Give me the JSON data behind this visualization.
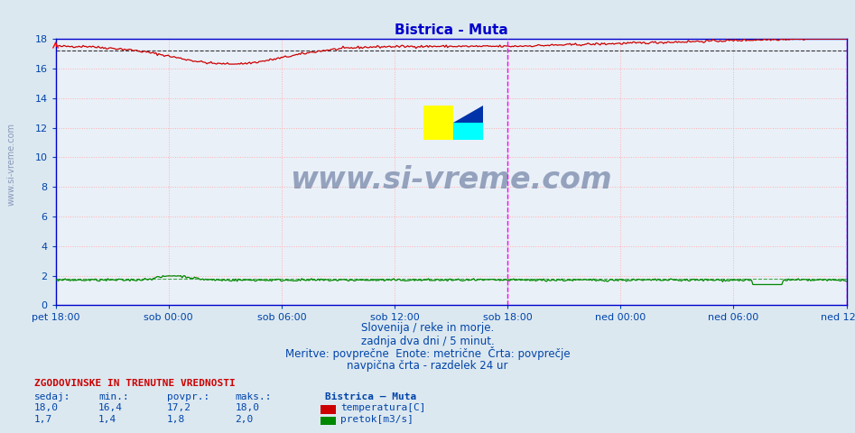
{
  "title": "Bistrica - Muta",
  "title_color": "#0000cc",
  "bg_color": "#dce8f0",
  "plot_bg_color": "#eaf0f8",
  "grid_color": "#ffb0b0",
  "border_color": "#0000cc",
  "ylim": [
    0,
    18
  ],
  "yticks": [
    0,
    2,
    4,
    6,
    8,
    10,
    12,
    14,
    16,
    18
  ],
  "xtick_labels": [
    "pet 18:00",
    "sob 00:00",
    "sob 06:00",
    "sob 12:00",
    "sob 18:00",
    "ned 00:00",
    "ned 06:00",
    "ned 12:00"
  ],
  "n_points": 576,
  "temp_color": "#cc0000",
  "flow_color": "#008800",
  "temp_avg": 17.2,
  "flow_avg": 1.8,
  "watermark": "www.si-vreme.com",
  "watermark_color": "#7788aa",
  "side_watermark_color": "#8899bb",
  "subtitle1": "Slovenija / reke in morje.",
  "subtitle2": "zadnja dva dni / 5 minut.",
  "subtitle3": "Meritve: povprečne  Enote: metrične  Črta: povprečje",
  "subtitle4": "navpična črta - razdelek 24 ur",
  "legend_title": "Bistrica – Muta",
  "legend_label1": "temperatura[C]",
  "legend_label2": "pretok[m3/s]",
  "table_header": "ZGODOVINSKE IN TRENUTNE VREDNOSTI",
  "col_sedaj": "sedaj:",
  "col_min": "min.:",
  "col_povpr": "povpr.:",
  "col_maks": "maks.:",
  "text_color": "#0044aa",
  "xlabel_color": "#0044aa"
}
